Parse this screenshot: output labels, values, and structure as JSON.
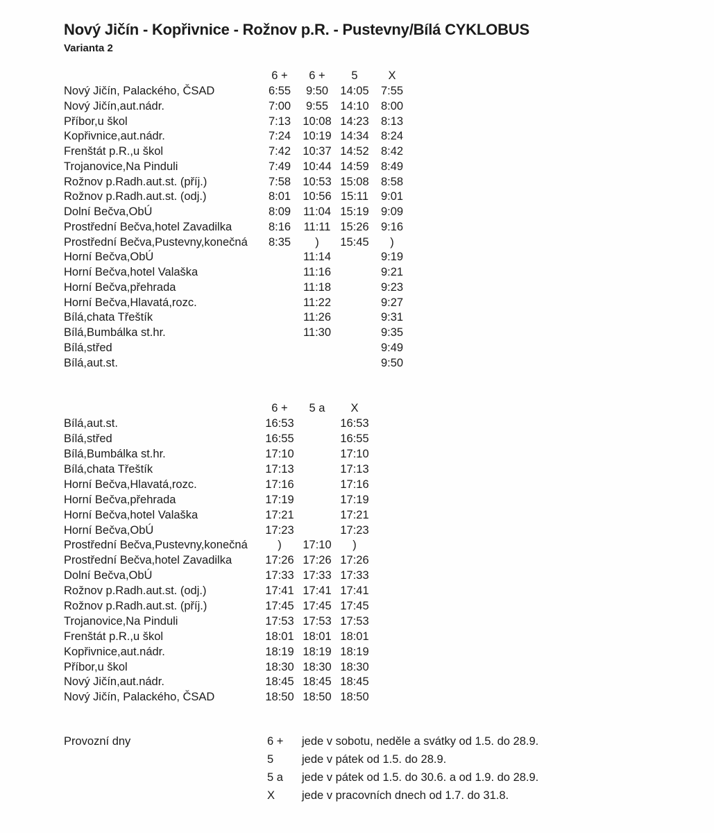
{
  "page": {
    "title": "Nový Jičín - Kopřivnice - Rožnov p.R. - Pustevny/Bílá CYKLOBUS",
    "variant": "Varianta 2"
  },
  "colors": {
    "text": "#1b1b1b",
    "background": "#fefefe"
  },
  "timetable_morning": {
    "columns": [
      "6 +",
      "6 +",
      "5",
      "X"
    ],
    "rows": [
      {
        "stop": "Nový Jičín, Palackého, ČSAD",
        "times": [
          "6:55",
          "9:50",
          "14:05",
          "7:55"
        ]
      },
      {
        "stop": "Nový Jičín,aut.nádr.",
        "times": [
          "7:00",
          "9:55",
          "14:10",
          "8:00"
        ]
      },
      {
        "stop": "Příbor,u škol",
        "times": [
          "7:13",
          "10:08",
          "14:23",
          "8:13"
        ]
      },
      {
        "stop": "Kopřivnice,aut.nádr.",
        "times": [
          "7:24",
          "10:19",
          "14:34",
          "8:24"
        ]
      },
      {
        "stop": "Frenštát p.R.,u škol",
        "times": [
          "7:42",
          "10:37",
          "14:52",
          "8:42"
        ]
      },
      {
        "stop": "Trojanovice,Na Pinduli",
        "times": [
          "7:49",
          "10:44",
          "14:59",
          "8:49"
        ]
      },
      {
        "stop": "Rožnov p.Radh.aut.st. (příj.)",
        "times": [
          "7:58",
          "10:53",
          "15:08",
          "8:58"
        ]
      },
      {
        "stop": "Rožnov p.Radh.aut.st. (odj.)",
        "times": [
          "8:01",
          "10:56",
          "15:11",
          "9:01"
        ]
      },
      {
        "stop": "Dolní Bečva,ObÚ",
        "times": [
          "8:09",
          "11:04",
          "15:19",
          "9:09"
        ]
      },
      {
        "stop": "Prostřední Bečva,hotel Zavadilka",
        "times": [
          "8:16",
          "11:11",
          "15:26",
          "9:16"
        ]
      },
      {
        "stop": "Prostřední Bečva,Pustevny,konečná",
        "times": [
          "8:35",
          ")",
          "15:45",
          ")"
        ]
      },
      {
        "stop": "Horní Bečva,ObÚ",
        "times": [
          "",
          "11:14",
          "",
          "9:19"
        ]
      },
      {
        "stop": "Horní Bečva,hotel Valaška",
        "times": [
          "",
          "11:16",
          "",
          "9:21"
        ]
      },
      {
        "stop": "Horní Bečva,přehrada",
        "times": [
          "",
          "11:18",
          "",
          "9:23"
        ]
      },
      {
        "stop": "Horní Bečva,Hlavatá,rozc.",
        "times": [
          "",
          "11:22",
          "",
          "9:27"
        ]
      },
      {
        "stop": "Bílá,chata Třeštík",
        "times": [
          "",
          "11:26",
          "",
          "9:31"
        ]
      },
      {
        "stop": "Bílá,Bumbálka st.hr.",
        "times": [
          "",
          "11:30",
          "",
          "9:35"
        ]
      },
      {
        "stop": "Bílá,střed",
        "times": [
          "",
          "",
          "",
          "9:49"
        ]
      },
      {
        "stop": "Bílá,aut.st.",
        "times": [
          "",
          "",
          "",
          "9:50"
        ]
      }
    ]
  },
  "timetable_evening": {
    "columns": [
      "6 +",
      "5 a",
      "X"
    ],
    "rows": [
      {
        "stop": "Bílá,aut.st.",
        "times": [
          "16:53",
          "",
          "16:53"
        ]
      },
      {
        "stop": "Bílá,střed",
        "times": [
          "16:55",
          "",
          "16:55"
        ]
      },
      {
        "stop": "Bílá,Bumbálka st.hr.",
        "times": [
          "17:10",
          "",
          "17:10"
        ]
      },
      {
        "stop": "Bílá,chata Třeštík",
        "times": [
          "17:13",
          "",
          "17:13"
        ]
      },
      {
        "stop": "Horní Bečva,Hlavatá,rozc.",
        "times": [
          "17:16",
          "",
          "17:16"
        ]
      },
      {
        "stop": "Horní Bečva,přehrada",
        "times": [
          "17:19",
          "",
          "17:19"
        ]
      },
      {
        "stop": "Horní Bečva,hotel Valaška",
        "times": [
          "17:21",
          "",
          "17:21"
        ]
      },
      {
        "stop": "Horní Bečva,ObÚ",
        "times": [
          "17:23",
          "",
          "17:23"
        ]
      },
      {
        "stop": "Prostřední Bečva,Pustevny,konečná",
        "times": [
          ")",
          "17:10",
          ")"
        ]
      },
      {
        "stop": "Prostřední Bečva,hotel Zavadilka",
        "times": [
          "17:26",
          "17:26",
          "17:26"
        ]
      },
      {
        "stop": "Dolní Bečva,ObÚ",
        "times": [
          "17:33",
          "17:33",
          "17:33"
        ]
      },
      {
        "stop": "Rožnov p.Radh.aut.st. (odj.)",
        "times": [
          "17:41",
          "17:41",
          "17:41"
        ]
      },
      {
        "stop": "Rožnov p.Radh.aut.st. (příj.)",
        "times": [
          "17:45",
          "17:45",
          "17:45"
        ]
      },
      {
        "stop": "Trojanovice,Na Pinduli",
        "times": [
          "17:53",
          "17:53",
          "17:53"
        ]
      },
      {
        "stop": "Frenštát p.R.,u škol",
        "times": [
          "18:01",
          "18:01",
          "18:01"
        ]
      },
      {
        "stop": "Kopřivnice,aut.nádr.",
        "times": [
          "18:19",
          "18:19",
          "18:19"
        ]
      },
      {
        "stop": "Příbor,u škol",
        "times": [
          "18:30",
          "18:30",
          "18:30"
        ]
      },
      {
        "stop": "Nový Jičín,aut.nádr.",
        "times": [
          "18:45",
          "18:45",
          "18:45"
        ]
      },
      {
        "stop": "Nový Jičín, Palackého, ČSAD",
        "times": [
          "18:50",
          "18:50",
          "18:50"
        ]
      }
    ]
  },
  "notes": {
    "label": "Provozní dny",
    "items": [
      {
        "symbol": "6 +",
        "text": "jede v sobotu, neděle a svátky od 1.5. do 28.9."
      },
      {
        "symbol": "5",
        "text": "jede v pátek od 1.5. do 28.9."
      },
      {
        "symbol": "5 a",
        "text": "jede v pátek od 1.5. do 30.6. a od 1.9. do 28.9."
      },
      {
        "symbol": "X",
        "text": "jede v pracovních dnech od 1.7. do 31.8."
      }
    ]
  }
}
